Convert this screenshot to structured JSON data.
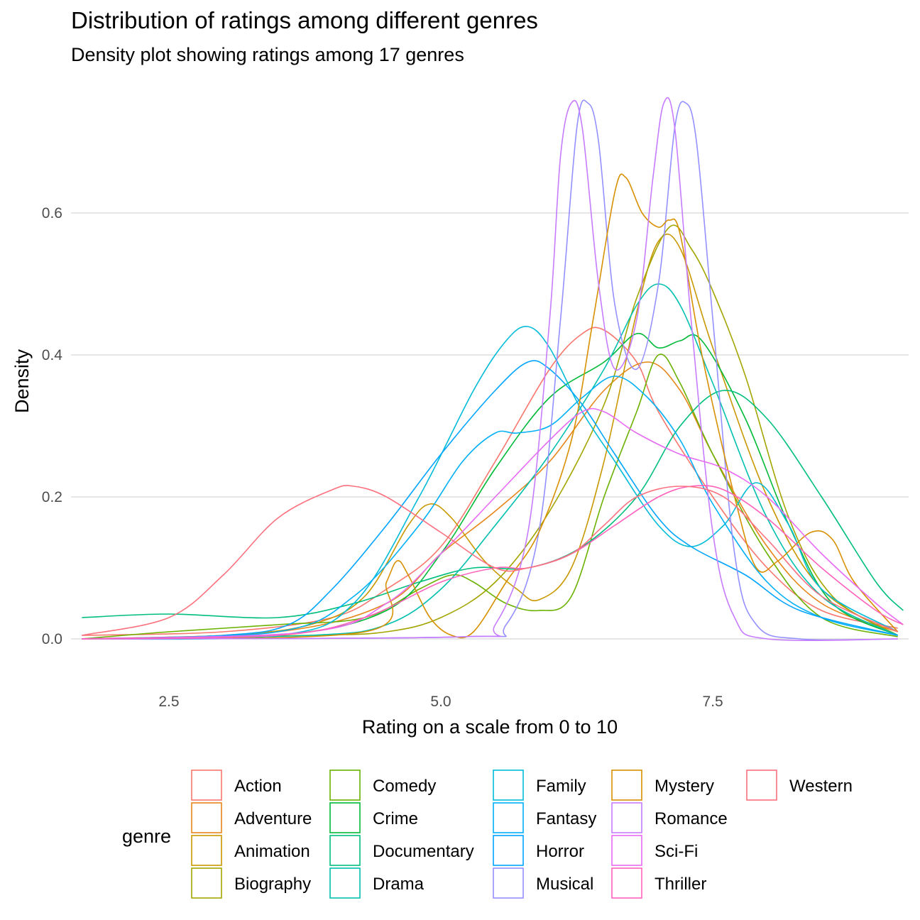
{
  "chart_data": {
    "type": "line",
    "title": "Distribution of ratings among different genres",
    "subtitle": "Density plot showing ratings among 17 genres",
    "xlabel": "Rating on a scale from 0 to 10",
    "ylabel": "Density",
    "xlim": [
      1.6,
      9.3
    ],
    "ylim": [
      -0.055,
      0.76
    ],
    "x_ticks": [
      2.5,
      5.0,
      7.5
    ],
    "x_tick_labels": [
      "2.5",
      "5.0",
      "7.5"
    ],
    "y_ticks": [
      0.0,
      0.2,
      0.4,
      0.6
    ],
    "y_tick_labels": [
      "0.0",
      "0.2",
      "0.4",
      "0.6"
    ],
    "grid": true,
    "legend_title": "genre",
    "legend_position": "bottom",
    "series": [
      {
        "name": "Action",
        "color": "#F8766D",
        "points": [
          [
            1.7,
            0.005
          ],
          [
            3.0,
            0.01
          ],
          [
            4.0,
            0.03
          ],
          [
            4.5,
            0.07
          ],
          [
            5.0,
            0.13
          ],
          [
            5.5,
            0.25
          ],
          [
            6.0,
            0.38
          ],
          [
            6.3,
            0.43
          ],
          [
            6.5,
            0.435
          ],
          [
            6.8,
            0.39
          ],
          [
            7.0,
            0.32
          ],
          [
            7.5,
            0.2
          ],
          [
            8.0,
            0.1
          ],
          [
            8.5,
            0.04
          ],
          [
            9.2,
            0.015
          ]
        ]
      },
      {
        "name": "Adventure",
        "color": "#E7861B",
        "points": [
          [
            1.7,
            0.0
          ],
          [
            3.5,
            0.01
          ],
          [
            4.5,
            0.05
          ],
          [
            5.0,
            0.12
          ],
          [
            5.5,
            0.18
          ],
          [
            6.0,
            0.25
          ],
          [
            6.5,
            0.35
          ],
          [
            6.9,
            0.39
          ],
          [
            7.2,
            0.35
          ],
          [
            7.5,
            0.26
          ],
          [
            8.0,
            0.13
          ],
          [
            8.5,
            0.05
          ],
          [
            9.2,
            0.01
          ]
        ]
      },
      {
        "name": "Animation",
        "color": "#C99800",
        "points": [
          [
            1.7,
            0.0
          ],
          [
            3.0,
            0.005
          ],
          [
            3.8,
            0.02
          ],
          [
            4.3,
            0.06
          ],
          [
            4.7,
            0.16
          ],
          [
            4.9,
            0.19
          ],
          [
            5.1,
            0.17
          ],
          [
            5.4,
            0.11
          ],
          [
            5.7,
            0.07
          ],
          [
            5.9,
            0.055
          ],
          [
            6.2,
            0.1
          ],
          [
            6.5,
            0.25
          ],
          [
            6.8,
            0.46
          ],
          [
            7.0,
            0.56
          ],
          [
            7.2,
            0.55
          ],
          [
            7.5,
            0.41
          ],
          [
            8.0,
            0.2
          ],
          [
            8.5,
            0.07
          ],
          [
            9.2,
            0.005
          ]
        ]
      },
      {
        "name": "Biography",
        "color": "#A3A500",
        "points": [
          [
            1.7,
            0.0
          ],
          [
            3.8,
            0.005
          ],
          [
            4.5,
            0.01
          ],
          [
            5.0,
            0.03
          ],
          [
            5.5,
            0.08
          ],
          [
            6.0,
            0.18
          ],
          [
            6.5,
            0.33
          ],
          [
            6.8,
            0.48
          ],
          [
            7.1,
            0.58
          ],
          [
            7.3,
            0.55
          ],
          [
            7.5,
            0.49
          ],
          [
            7.8,
            0.37
          ],
          [
            8.2,
            0.17
          ],
          [
            8.6,
            0.06
          ],
          [
            9.2,
            0.005
          ]
        ]
      },
      {
        "name": "Comedy",
        "color": "#6BB100",
        "points": [
          [
            1.7,
            0.0
          ],
          [
            2.5,
            0.01
          ],
          [
            3.5,
            0.02
          ],
          [
            4.3,
            0.03
          ],
          [
            4.8,
            0.07
          ],
          [
            5.1,
            0.09
          ],
          [
            5.3,
            0.08
          ],
          [
            5.6,
            0.05
          ],
          [
            5.9,
            0.04
          ],
          [
            6.2,
            0.06
          ],
          [
            6.5,
            0.2
          ],
          [
            6.8,
            0.32
          ],
          [
            7.0,
            0.4
          ],
          [
            7.2,
            0.36
          ],
          [
            7.5,
            0.26
          ],
          [
            8.0,
            0.12
          ],
          [
            8.5,
            0.03
          ],
          [
            9.2,
            0.003
          ]
        ]
      },
      {
        "name": "Crime",
        "color": "#00BA38",
        "points": [
          [
            1.7,
            0.0
          ],
          [
            3.5,
            0.005
          ],
          [
            4.5,
            0.04
          ],
          [
            5.0,
            0.12
          ],
          [
            5.5,
            0.24
          ],
          [
            6.0,
            0.34
          ],
          [
            6.5,
            0.39
          ],
          [
            6.8,
            0.43
          ],
          [
            7.0,
            0.41
          ],
          [
            7.2,
            0.42
          ],
          [
            7.4,
            0.42
          ],
          [
            7.8,
            0.31
          ],
          [
            8.2,
            0.16
          ],
          [
            8.6,
            0.05
          ],
          [
            9.2,
            0.005
          ]
        ]
      },
      {
        "name": "Documentary",
        "color": "#00BF7D",
        "points": [
          [
            1.7,
            0.03
          ],
          [
            2.5,
            0.035
          ],
          [
            3.5,
            0.03
          ],
          [
            4.2,
            0.05
          ],
          [
            4.8,
            0.08
          ],
          [
            5.3,
            0.1
          ],
          [
            5.8,
            0.1
          ],
          [
            6.3,
            0.13
          ],
          [
            6.8,
            0.2
          ],
          [
            7.2,
            0.3
          ],
          [
            7.6,
            0.35
          ],
          [
            8.0,
            0.31
          ],
          [
            8.5,
            0.2
          ],
          [
            9.0,
            0.08
          ],
          [
            9.25,
            0.04
          ]
        ]
      },
      {
        "name": "Drama",
        "color": "#00C0AF",
        "points": [
          [
            1.7,
            0.0
          ],
          [
            3.8,
            0.005
          ],
          [
            4.5,
            0.02
          ],
          [
            5.0,
            0.07
          ],
          [
            5.5,
            0.16
          ],
          [
            6.0,
            0.26
          ],
          [
            6.5,
            0.38
          ],
          [
            6.8,
            0.47
          ],
          [
            7.0,
            0.5
          ],
          [
            7.2,
            0.47
          ],
          [
            7.5,
            0.36
          ],
          [
            8.0,
            0.17
          ],
          [
            8.5,
            0.06
          ],
          [
            9.2,
            0.005
          ]
        ]
      },
      {
        "name": "Family",
        "color": "#00BCD8",
        "points": [
          [
            1.7,
            0.0
          ],
          [
            3.5,
            0.005
          ],
          [
            4.2,
            0.05
          ],
          [
            4.8,
            0.2
          ],
          [
            5.3,
            0.35
          ],
          [
            5.6,
            0.42
          ],
          [
            5.8,
            0.44
          ],
          [
            6.0,
            0.41
          ],
          [
            6.3,
            0.32
          ],
          [
            6.6,
            0.25
          ],
          [
            7.0,
            0.16
          ],
          [
            7.3,
            0.13
          ],
          [
            7.6,
            0.16
          ],
          [
            7.9,
            0.22
          ],
          [
            8.2,
            0.16
          ],
          [
            8.5,
            0.07
          ],
          [
            9.2,
            0.01
          ]
        ]
      },
      {
        "name": "Fantasy",
        "color": "#00B0F6",
        "points": [
          [
            1.7,
            0.0
          ],
          [
            3.5,
            0.01
          ],
          [
            4.2,
            0.06
          ],
          [
            4.8,
            0.16
          ],
          [
            5.2,
            0.25
          ],
          [
            5.5,
            0.29
          ],
          [
            5.7,
            0.29
          ],
          [
            6.0,
            0.3
          ],
          [
            6.3,
            0.34
          ],
          [
            6.6,
            0.37
          ],
          [
            6.9,
            0.34
          ],
          [
            7.2,
            0.28
          ],
          [
            7.5,
            0.19
          ],
          [
            8.0,
            0.08
          ],
          [
            8.5,
            0.03
          ],
          [
            9.2,
            0.005
          ]
        ]
      },
      {
        "name": "Horror",
        "color": "#00A5FF",
        "points": [
          [
            1.7,
            0.0
          ],
          [
            3.0,
            0.005
          ],
          [
            3.6,
            0.02
          ],
          [
            4.0,
            0.07
          ],
          [
            4.5,
            0.16
          ],
          [
            5.0,
            0.26
          ],
          [
            5.5,
            0.35
          ],
          [
            5.8,
            0.39
          ],
          [
            6.0,
            0.38
          ],
          [
            6.3,
            0.33
          ],
          [
            6.6,
            0.26
          ],
          [
            7.0,
            0.17
          ],
          [
            7.3,
            0.13
          ],
          [
            7.8,
            0.09
          ],
          [
            8.3,
            0.04
          ],
          [
            9.2,
            0.005
          ]
        ]
      },
      {
        "name": "Musical",
        "color": "#9590FF",
        "points": [
          [
            1.7,
            0.0
          ],
          [
            5.2,
            0.003
          ],
          [
            5.6,
            0.02
          ],
          [
            5.9,
            0.15
          ],
          [
            6.1,
            0.45
          ],
          [
            6.25,
            0.72
          ],
          [
            6.35,
            0.755
          ],
          [
            6.45,
            0.7
          ],
          [
            6.6,
            0.47
          ],
          [
            6.8,
            0.38
          ],
          [
            7.0,
            0.5
          ],
          [
            7.15,
            0.72
          ],
          [
            7.25,
            0.755
          ],
          [
            7.35,
            0.7
          ],
          [
            7.5,
            0.45
          ],
          [
            7.7,
            0.12
          ],
          [
            7.9,
            0.02
          ],
          [
            8.3,
            0.0
          ],
          [
            9.2,
            0.0
          ]
        ]
      },
      {
        "name": "Mystery",
        "color": "#D89000",
        "points": [
          [
            1.7,
            0.0
          ],
          [
            4.3,
            0.01
          ],
          [
            4.5,
            0.08
          ],
          [
            4.6,
            0.11
          ],
          [
            4.7,
            0.09
          ],
          [
            4.9,
            0.03
          ],
          [
            5.1,
            0.005
          ],
          [
            5.3,
            0.01
          ],
          [
            5.6,
            0.08
          ],
          [
            5.9,
            0.15
          ],
          [
            6.2,
            0.28
          ],
          [
            6.4,
            0.45
          ],
          [
            6.6,
            0.63
          ],
          [
            6.7,
            0.65
          ],
          [
            6.85,
            0.6
          ],
          [
            7.0,
            0.58
          ],
          [
            7.1,
            0.59
          ],
          [
            7.2,
            0.57
          ],
          [
            7.4,
            0.4
          ],
          [
            7.7,
            0.2
          ],
          [
            7.9,
            0.1
          ],
          [
            8.1,
            0.11
          ],
          [
            8.4,
            0.15
          ],
          [
            8.6,
            0.14
          ],
          [
            8.8,
            0.08
          ],
          [
            9.2,
            0.01
          ]
        ]
      },
      {
        "name": "Romance",
        "color": "#C77CFF",
        "points": [
          [
            1.7,
            0.0
          ],
          [
            5.2,
            0.003
          ],
          [
            5.5,
            0.02
          ],
          [
            5.8,
            0.15
          ],
          [
            6.0,
            0.45
          ],
          [
            6.1,
            0.68
          ],
          [
            6.2,
            0.755
          ],
          [
            6.3,
            0.72
          ],
          [
            6.45,
            0.5
          ],
          [
            6.6,
            0.38
          ],
          [
            6.8,
            0.45
          ],
          [
            6.95,
            0.65
          ],
          [
            7.05,
            0.755
          ],
          [
            7.15,
            0.72
          ],
          [
            7.3,
            0.45
          ],
          [
            7.5,
            0.15
          ],
          [
            7.7,
            0.03
          ],
          [
            8.0,
            0.0
          ],
          [
            9.2,
            0.0
          ]
        ]
      },
      {
        "name": "Sci-Fi",
        "color": "#E76BF3",
        "points": [
          [
            1.7,
            0.0
          ],
          [
            3.8,
            0.01
          ],
          [
            4.5,
            0.05
          ],
          [
            5.0,
            0.12
          ],
          [
            5.5,
            0.2
          ],
          [
            6.0,
            0.28
          ],
          [
            6.3,
            0.32
          ],
          [
            6.5,
            0.32
          ],
          [
            6.8,
            0.29
          ],
          [
            7.2,
            0.26
          ],
          [
            7.6,
            0.24
          ],
          [
            8.0,
            0.2
          ],
          [
            8.5,
            0.12
          ],
          [
            9.0,
            0.05
          ],
          [
            9.25,
            0.02
          ]
        ]
      },
      {
        "name": "Thriller",
        "color": "#FF62BC",
        "points": [
          [
            1.7,
            0.0
          ],
          [
            3.5,
            0.005
          ],
          [
            4.3,
            0.03
          ],
          [
            5.0,
            0.08
          ],
          [
            5.5,
            0.1
          ],
          [
            5.8,
            0.1
          ],
          [
            6.2,
            0.12
          ],
          [
            6.6,
            0.16
          ],
          [
            7.0,
            0.2
          ],
          [
            7.3,
            0.215
          ],
          [
            7.6,
            0.21
          ],
          [
            8.0,
            0.17
          ],
          [
            8.5,
            0.1
          ],
          [
            9.0,
            0.04
          ],
          [
            9.25,
            0.02
          ]
        ]
      },
      {
        "name": "Western",
        "color": "#FC717F",
        "points": [
          [
            1.7,
            0.005
          ],
          [
            2.5,
            0.03
          ],
          [
            3.0,
            0.09
          ],
          [
            3.5,
            0.17
          ],
          [
            4.0,
            0.21
          ],
          [
            4.2,
            0.215
          ],
          [
            4.5,
            0.2
          ],
          [
            5.0,
            0.15
          ],
          [
            5.5,
            0.1
          ],
          [
            5.8,
            0.1
          ],
          [
            6.2,
            0.12
          ],
          [
            6.5,
            0.16
          ],
          [
            6.8,
            0.2
          ],
          [
            7.2,
            0.215
          ],
          [
            7.6,
            0.2
          ],
          [
            8.0,
            0.14
          ],
          [
            8.5,
            0.06
          ],
          [
            9.2,
            0.01
          ]
        ]
      }
    ]
  }
}
